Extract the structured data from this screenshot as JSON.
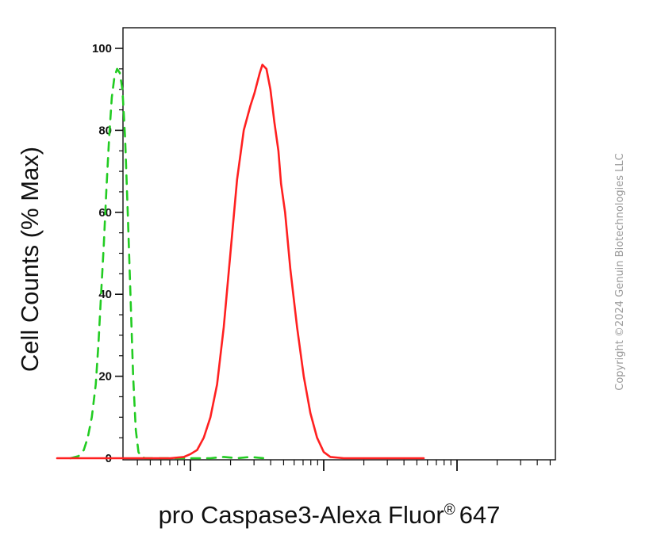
{
  "chart_data": {
    "type": "line",
    "title": "",
    "xlabel": "pro Caspase3-Alexa Fluor",
    "xlabel_superscript": "®",
    "xlabel_suffix": "647",
    "ylabel": "Cell Counts (% Max)",
    "x_scale": "log",
    "x_tick_labels": [],
    "ylim": [
      0,
      100
    ],
    "y_ticks": [
      0,
      20,
      40,
      60,
      80,
      100
    ],
    "y_tick_labels": [
      "0",
      "20",
      "40",
      "60",
      "80",
      "100"
    ],
    "grid": false,
    "legend": "none",
    "series": [
      {
        "color": "#22cc22",
        "line_style": "dashed",
        "points": [
          [
            0.1,
            0
          ],
          [
            0.16,
            0.5
          ],
          [
            0.2,
            2
          ],
          [
            0.23,
            5
          ],
          [
            0.26,
            10
          ],
          [
            0.29,
            18
          ],
          [
            0.31,
            28
          ],
          [
            0.33,
            40
          ],
          [
            0.35,
            52
          ],
          [
            0.37,
            66
          ],
          [
            0.39,
            78
          ],
          [
            0.41,
            88
          ],
          [
            0.43,
            93
          ],
          [
            0.45,
            95
          ],
          [
            0.47,
            94
          ],
          [
            0.49,
            90
          ],
          [
            0.51,
            78
          ],
          [
            0.53,
            60
          ],
          [
            0.55,
            40
          ],
          [
            0.57,
            20
          ],
          [
            0.59,
            7
          ],
          [
            0.61,
            1.5
          ],
          [
            0.63,
            0.3
          ],
          [
            0.66,
            0
          ],
          [
            1.15,
            0
          ],
          [
            1.25,
            0.3
          ],
          [
            1.35,
            0
          ],
          [
            1.45,
            0.3
          ],
          [
            1.55,
            0
          ]
        ]
      },
      {
        "color": "#ff2020",
        "line_style": "solid",
        "points": [
          [
            0.0,
            0
          ],
          [
            0.5,
            0
          ],
          [
            0.85,
            0
          ],
          [
            0.95,
            0.3
          ],
          [
            1.0,
            1
          ],
          [
            1.05,
            2
          ],
          [
            1.1,
            5
          ],
          [
            1.15,
            10
          ],
          [
            1.2,
            18
          ],
          [
            1.25,
            32
          ],
          [
            1.3,
            50
          ],
          [
            1.35,
            68
          ],
          [
            1.4,
            80
          ],
          [
            1.45,
            86
          ],
          [
            1.48,
            89
          ],
          [
            1.52,
            94
          ],
          [
            1.54,
            96
          ],
          [
            1.57,
            95
          ],
          [
            1.6,
            90
          ],
          [
            1.63,
            82
          ],
          [
            1.66,
            75
          ],
          [
            1.68,
            67
          ],
          [
            1.71,
            60
          ],
          [
            1.75,
            46
          ],
          [
            1.8,
            32
          ],
          [
            1.85,
            20
          ],
          [
            1.9,
            11
          ],
          [
            1.95,
            5
          ],
          [
            2.0,
            1.5
          ],
          [
            2.05,
            0.3
          ],
          [
            2.15,
            0
          ],
          [
            2.4,
            0
          ],
          [
            2.75,
            0
          ]
        ]
      }
    ]
  },
  "watermark": {
    "text": "Copyright ©2024 Genuin Biotechnologies LLC"
  }
}
